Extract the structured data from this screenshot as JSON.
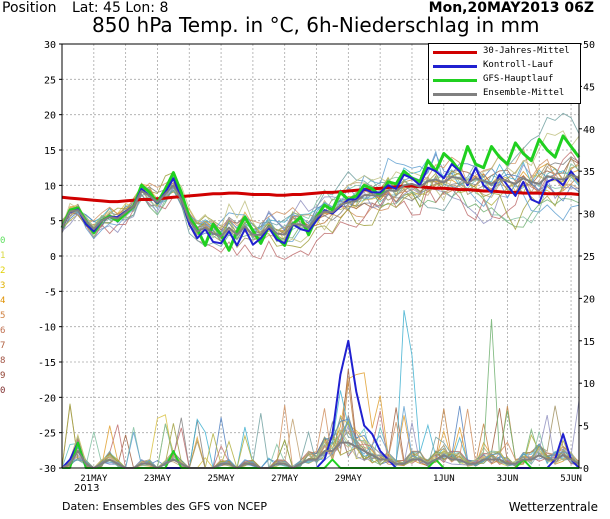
{
  "header": {
    "position_label": "Position",
    "latlon": "Lat: 45 Lon: 8",
    "date": "Mon,20MAY2013 06Z",
    "title": "850 hPa Temp. in °C, 6h-Niederschlag in mm"
  },
  "footer": {
    "source": "Daten: Ensembles des GFS von NCEP",
    "credit": "Wetterzentrale",
    "year": "2013"
  },
  "legend": [
    {
      "label": "30-Jahres-Mittel",
      "color": "#d00000"
    },
    {
      "label": "Kontroll-Lauf",
      "color": "#2020d0"
    },
    {
      "label": "GFS-Hauptlauf",
      "color": "#20d020"
    },
    {
      "label": "Ensemble-Mittel",
      "color": "#808080"
    }
  ],
  "member_labels": [
    {
      "text": "0",
      "color": "#60e060"
    },
    {
      "text": "1",
      "color": "#d8d840"
    },
    {
      "text": "2",
      "color": "#e0d000"
    },
    {
      "text": "3",
      "color": "#e0b000"
    },
    {
      "text": "4",
      "color": "#e09000"
    },
    {
      "text": "5",
      "color": "#d08040"
    },
    {
      "text": "6",
      "color": "#c07050"
    },
    {
      "text": "7",
      "color": "#b06040"
    },
    {
      "text": "8",
      "color": "#a05040"
    },
    {
      "text": "9",
      "color": "#904030"
    },
    {
      "text": "0",
      "color": "#803030"
    }
  ],
  "chart_data": {
    "type": "line",
    "title": "850 hPa Temp. in °C, 6h-Niederschlag in mm",
    "x_ticks": [
      "21MAY",
      "23MAY",
      "25MAY",
      "27MAY",
      "29MAY",
      "1JUN",
      "3JUN",
      "5JUN"
    ],
    "x_tick_days": [
      1,
      3,
      5,
      7,
      9,
      12,
      14,
      16
    ],
    "xlim_days": [
      0.0,
      16.25
    ],
    "y_left_ticks": [
      "30",
      "25",
      "20",
      "15",
      "10",
      "5",
      "0",
      "-5",
      "-10",
      "-15",
      "-20",
      "-25",
      "-30"
    ],
    "y_right_ticks": [
      "50",
      "45",
      "40",
      "35",
      "30",
      "25",
      "20",
      "15",
      "10",
      "5",
      "0"
    ],
    "ylim_temp": [
      -30,
      30
    ],
    "ylim_precip": [
      0,
      50
    ],
    "grid": true,
    "series_temp": [
      {
        "name": "30-Jahres-Mittel",
        "color": "#d00000",
        "width": 3,
        "values": [
          8.3,
          8.2,
          8.1,
          8.0,
          7.9,
          7.8,
          7.7,
          7.7,
          7.8,
          7.9,
          8.0,
          8.0,
          8.1,
          8.2,
          8.3,
          8.4,
          8.5,
          8.6,
          8.7,
          8.8,
          8.8,
          8.9,
          8.9,
          8.8,
          8.7,
          8.7,
          8.7,
          8.6,
          8.6,
          8.7,
          8.7,
          8.8,
          8.9,
          9.0,
          9.0,
          9.1,
          9.2,
          9.3,
          9.4,
          9.5,
          9.6,
          9.7,
          9.8,
          9.9,
          9.9,
          9.8,
          9.7,
          9.6,
          9.6,
          9.5,
          9.4,
          9.4,
          9.3,
          9.2,
          9.2,
          9.1,
          9.0,
          9.0,
          8.9,
          8.9,
          8.9,
          8.8,
          8.8,
          8.8,
          8.8,
          8.7
        ]
      },
      {
        "name": "GFS-Hauptlauf",
        "color": "#20d020",
        "width": 3,
        "values": [
          4.0,
          6.5,
          6.8,
          5.0,
          3.3,
          5.0,
          5.6,
          5.0,
          6.0,
          7.0,
          10.0,
          9.0,
          7.5,
          9.5,
          11.8,
          9.0,
          5.5,
          3.8,
          1.5,
          4.5,
          3.0,
          0.8,
          3.5,
          5.5,
          3.6,
          1.8,
          4.2,
          2.6,
          1.5,
          4.5,
          5.5,
          3.0,
          5.5,
          7.2,
          6.5,
          9.0,
          8.0,
          8.5,
          10.0,
          9.5,
          8.5,
          10.5,
          10.2,
          12.0,
          11.0,
          10.5,
          13.5,
          12.0,
          14.5,
          13.5,
          12.0,
          15.5,
          13.0,
          12.5,
          15.5,
          14.0,
          13.0,
          16.0,
          14.5,
          13.5,
          16.5,
          15.0,
          14.0,
          17.0,
          15.5,
          14.0
        ]
      },
      {
        "name": "Kontroll-Lauf",
        "color": "#2020d0",
        "width": 2,
        "values": [
          4.0,
          6.2,
          6.6,
          4.5,
          3.5,
          5.0,
          5.5,
          5.5,
          6.3,
          7.0,
          9.5,
          8.5,
          7.5,
          9.0,
          11.0,
          8.0,
          4.5,
          2.5,
          3.8,
          2.0,
          1.8,
          3.5,
          1.5,
          3.8,
          1.6,
          2.5,
          4.0,
          2.3,
          1.8,
          4.5,
          3.8,
          3.5,
          5.0,
          6.5,
          6.0,
          7.0,
          8.0,
          8.0,
          9.5,
          9.0,
          9.0,
          10.0,
          9.5,
          11.5,
          11.0,
          10.0,
          12.5,
          12.0,
          11.0,
          13.0,
          12.0,
          10.0,
          12.5,
          10.0,
          9.0,
          11.5,
          10.0,
          8.5,
          10.5,
          8.0,
          7.5,
          10.5,
          11.0,
          10.0,
          12.0,
          10.5
        ]
      },
      {
        "name": "Ensemble-Mittel",
        "color": "#808080",
        "width": 2,
        "values": [
          4.0,
          6.3,
          6.5,
          5.0,
          3.8,
          5.0,
          5.5,
          5.3,
          6.2,
          7.0,
          9.2,
          8.5,
          7.6,
          8.8,
          10.0,
          8.0,
          5.0,
          3.5,
          4.0,
          3.2,
          2.8,
          4.0,
          3.0,
          4.2,
          3.0,
          3.0,
          4.2,
          3.2,
          3.0,
          4.5,
          4.5,
          4.0,
          5.5,
          6.3,
          6.2,
          7.2,
          7.6,
          7.8,
          8.6,
          8.6,
          8.5,
          9.3,
          9.2,
          10.0,
          10.2,
          9.8,
          10.6,
          10.8,
          10.4,
          11.2,
          11.0,
          10.3,
          11.0,
          10.6,
          10.2,
          10.9,
          10.6,
          10.2,
          11.0,
          10.5,
          10.2,
          11.3,
          11.0,
          10.8,
          11.5,
          11.0
        ]
      }
    ],
    "series_precip": [
      {
        "name": "Kontroll-Lauf",
        "color": "#2020d0",
        "width": 2,
        "values": [
          0,
          1,
          3,
          0,
          0,
          0,
          0,
          0,
          0,
          0,
          0,
          0,
          0,
          0,
          0,
          0,
          0,
          0,
          0,
          0,
          0,
          0,
          0,
          0,
          0,
          0,
          0,
          0,
          0,
          0,
          0,
          0,
          0,
          1,
          4,
          11,
          15,
          9,
          5,
          4,
          2,
          1,
          0,
          0,
          0,
          0,
          0,
          0,
          0,
          0,
          0,
          0,
          0,
          0,
          0,
          0,
          0,
          0,
          0,
          0,
          0,
          0,
          1,
          4,
          1,
          0
        ]
      },
      {
        "name": "GFS-Hauptlauf",
        "color": "#20d020",
        "width": 2,
        "values": [
          0,
          0,
          3,
          0,
          0,
          0,
          0,
          0,
          0,
          0,
          0,
          0,
          0,
          0,
          2,
          0,
          0,
          0,
          0,
          0,
          0,
          0,
          0,
          0,
          0,
          0,
          0,
          0,
          0,
          0,
          0,
          0,
          0,
          0,
          1,
          0,
          0,
          0,
          0,
          0,
          0,
          0,
          0,
          0,
          0,
          0,
          0,
          1,
          0,
          0,
          0,
          0,
          0,
          0,
          0,
          0,
          0,
          0,
          1,
          0,
          0,
          0,
          0,
          0,
          0,
          0
        ]
      },
      {
        "name": "Ensemble-Mittel",
        "color": "#808080",
        "width": 2,
        "values": [
          0,
          0.5,
          2,
          0.5,
          0,
          0.5,
          1,
          0.5,
          0,
          0,
          0.5,
          0.5,
          0,
          0.5,
          1,
          0.5,
          0,
          0,
          0,
          0,
          0.5,
          0.5,
          0,
          0.5,
          0.5,
          0,
          0,
          0.5,
          0.5,
          0,
          0.5,
          1,
          1,
          2,
          2,
          3,
          3,
          2.5,
          2,
          1.5,
          1,
          1,
          0.5,
          0.5,
          1,
          1,
          0.5,
          1,
          1.5,
          1,
          1,
          0.5,
          0.5,
          1,
          1,
          1,
          0.5,
          0.5,
          1,
          1,
          1.5,
          1,
          1,
          1.5,
          1,
          0.5
        ]
      }
    ]
  }
}
